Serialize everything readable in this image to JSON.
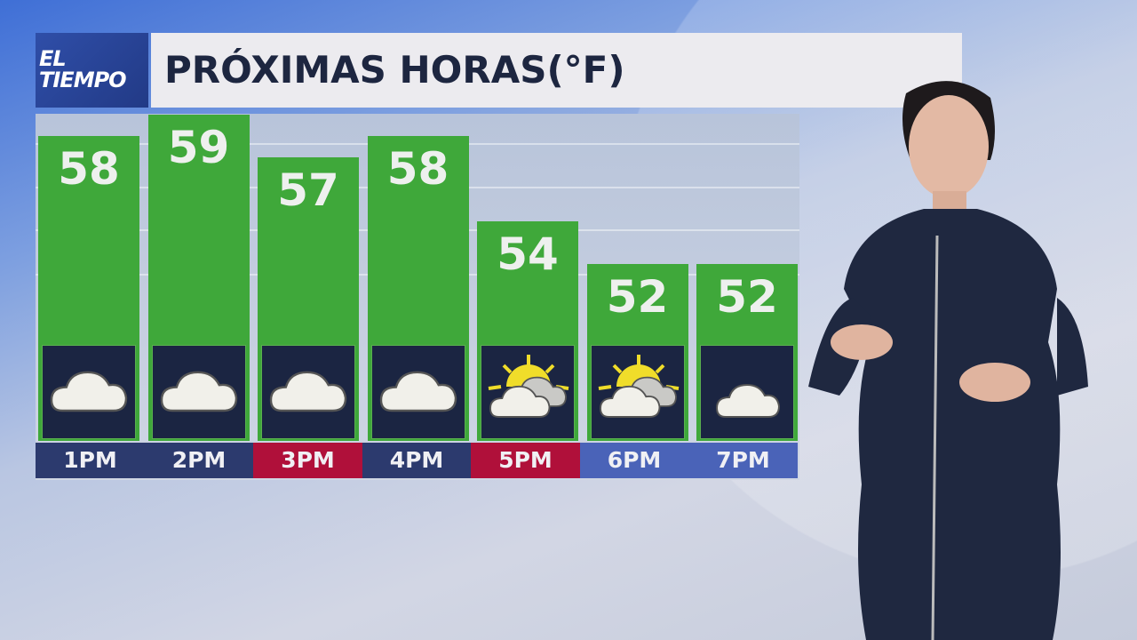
{
  "logo": {
    "line1": "EL",
    "line2": "TIEMPO"
  },
  "header": {
    "title": "PRÓXIMAS HORAS(°F)"
  },
  "colors": {
    "bar": "#3fa83a",
    "icon_bg": "#1b2542",
    "label_day": "#2c3a6e",
    "label_alert": "#b0103a",
    "label_evening": "#4a63b8"
  },
  "chart_data": {
    "type": "bar",
    "title": "PRÓXIMAS HORAS(°F)",
    "categories": [
      "1PM",
      "2PM",
      "3PM",
      "4PM",
      "5PM",
      "6PM",
      "7PM"
    ],
    "values": [
      58,
      59,
      57,
      58,
      54,
      52,
      52
    ],
    "icons": [
      "cloudy-icon",
      "cloudy-icon",
      "cloudy-icon",
      "cloudy-icon",
      "partly-sunny-icon",
      "partly-sunny-icon",
      "night-cloudy-icon"
    ],
    "label_styles": [
      "day",
      "day",
      "alert",
      "day",
      "alert",
      "evening",
      "evening"
    ],
    "grid": true
  }
}
